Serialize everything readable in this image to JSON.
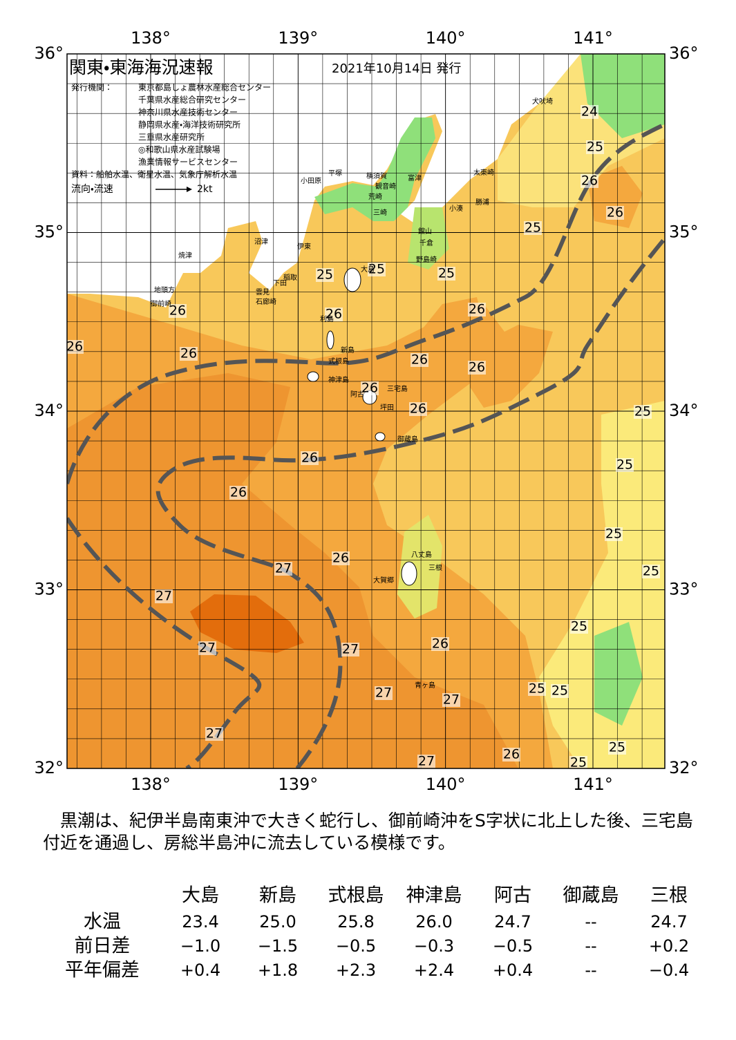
{
  "header": {
    "title": "関東・東海海況速報",
    "date": "2021年10月14日 発行",
    "issuer_label": "発行機関：",
    "issuers": [
      "東京都島しょ農林水産総合センター",
      "千葉県水産総合研究センター",
      "神奈川県水産技術センター",
      "静岡県水産・海洋技術研究所",
      "三重県水産研究所",
      "◎和歌山県水産試験場",
      "漁業情報サービスセンター"
    ],
    "source": "資料：船舶水温、衛星水温、気象庁解析水温",
    "flow_label": "流向・流速",
    "flow_scale": "2kt"
  },
  "map": {
    "lon_ticks": [
      {
        "value": 138,
        "label": "138°"
      },
      {
        "value": 139,
        "label": "139°"
      },
      {
        "value": 140,
        "label": "140°"
      },
      {
        "value": 141,
        "label": "141°"
      }
    ],
    "lat_ticks": [
      {
        "value": 36,
        "label": "36°"
      },
      {
        "value": 35,
        "label": "35°"
      },
      {
        "value": 34,
        "label": "34°"
      },
      {
        "value": 33,
        "label": "33°"
      },
      {
        "value": 32,
        "label": "32°"
      }
    ],
    "contour_labels": [
      24,
      25,
      26,
      26,
      25,
      25,
      25,
      25,
      26,
      26,
      26,
      26,
      26,
      26,
      26,
      26,
      26,
      25,
      26,
      25,
      26,
      25,
      26,
      27,
      25,
      27,
      25,
      26,
      27,
      27,
      25,
      25,
      27,
      27,
      27,
      25,
      26,
      27,
      25
    ],
    "place_names": [
      "犬吠埼",
      "太東崎",
      "勝浦",
      "小湊",
      "館山",
      "千倉",
      "野島崎",
      "富津",
      "観音崎",
      "横須賀",
      "平塚",
      "小田原",
      "荒崎",
      "三崎",
      "大島",
      "石廊崎",
      "下田",
      "稲取",
      "雲見",
      "伊東",
      "沼津",
      "焼津",
      "地頭方",
      "御前崎",
      "利島",
      "新島",
      "式根島",
      "神津島",
      "三宅島",
      "阿古",
      "坪田",
      "御蔵島",
      "八丈島",
      "三根",
      "大賀郷",
      "青ヶ島"
    ]
  },
  "summary": "黒潮は、紀伊半島南東沖で大きく蛇行し、御前崎沖をS字状に北上した後、三宅島付近を通過し、房総半島沖に流去している模様です。",
  "table": {
    "columns": [
      "大島",
      "新島",
      "式根島",
      "神津島",
      "阿古",
      "御蔵島",
      "三根"
    ],
    "rows": [
      {
        "label": "水温",
        "cells": [
          "23.4",
          "25.0",
          "25.8",
          "26.0",
          "24.7",
          "--",
          "24.7"
        ]
      },
      {
        "label": "前日差",
        "cells": [
          "−1.0",
          "−1.5",
          "−0.5",
          "−0.3",
          "−0.5",
          "--",
          "+0.2"
        ]
      },
      {
        "label": "平年偏差",
        "cells": [
          "+0.4",
          "+1.8",
          "+2.3",
          "+2.4",
          "+0.4",
          "--",
          "−0.4"
        ]
      }
    ]
  }
}
